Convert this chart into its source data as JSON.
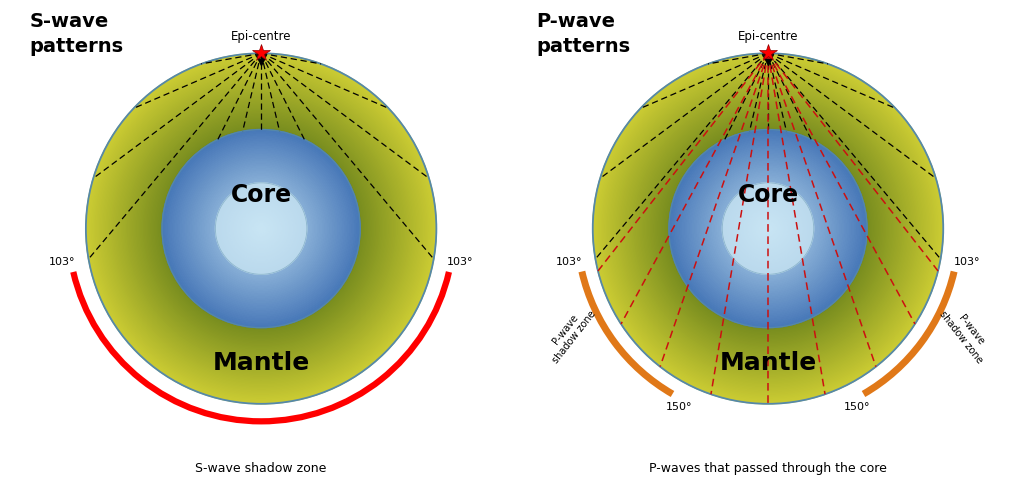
{
  "bg_color": "#ffffff",
  "s_wave_title": "S-wave\npatterns",
  "p_wave_title": "P-wave\npatterns",
  "epi_centre_label": "Epi-centre",
  "core_label": "Core",
  "mantle_label": "Mantle",
  "shadow_label_s": "S-wave shadow zone",
  "shadow_label_p": "P-waves that passed through the core",
  "deg_103": "103°",
  "deg_150": "150°",
  "R_mantle": 1.15,
  "R_core": 0.65,
  "R_inner": 0.3
}
